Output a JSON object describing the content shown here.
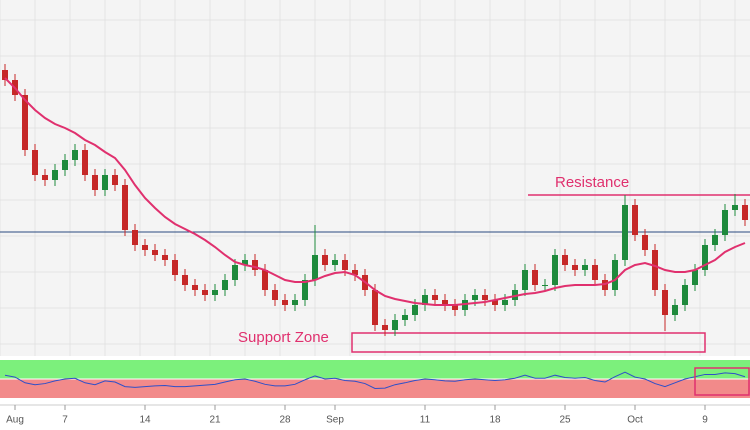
{
  "chart_data": {
    "type": "candlestick",
    "categories": [
      null,
      "Aug",
      null,
      null,
      null,
      null,
      "7",
      null,
      null,
      null,
      null,
      null,
      null,
      null,
      "14",
      null,
      null,
      null,
      null,
      null,
      null,
      "21",
      null,
      null,
      null,
      null,
      null,
      null,
      "28",
      null,
      null,
      null,
      null,
      "Sep",
      null,
      null,
      null,
      null,
      null,
      null,
      null,
      null,
      "11",
      null,
      null,
      null,
      null,
      null,
      null,
      "18",
      null,
      null,
      null,
      null,
      null,
      null,
      "25",
      null,
      null,
      null,
      null,
      null,
      null,
      "Oct",
      null,
      null,
      null,
      null,
      null,
      null,
      "9",
      null,
      null,
      null,
      null
    ],
    "ohlc": [
      [
        285,
        291,
        269,
        275
      ],
      [
        275,
        281,
        254,
        260
      ],
      [
        260,
        266,
        199,
        205
      ],
      [
        205,
        211,
        174,
        180
      ],
      [
        180,
        186,
        169,
        175
      ],
      [
        175,
        191,
        169,
        185
      ],
      [
        185,
        201,
        179,
        195
      ],
      [
        195,
        211,
        189,
        205
      ],
      [
        205,
        211,
        174,
        180
      ],
      [
        180,
        186,
        159,
        165
      ],
      [
        165,
        186,
        159,
        180
      ],
      [
        180,
        186,
        164,
        170
      ],
      [
        170,
        176,
        119,
        125
      ],
      [
        125,
        131,
        104,
        110
      ],
      [
        110,
        116,
        99,
        105
      ],
      [
        105,
        111,
        94,
        100
      ],
      [
        100,
        106,
        89,
        95
      ],
      [
        95,
        101,
        74,
        80
      ],
      [
        80,
        86,
        64,
        70
      ],
      [
        70,
        76,
        59,
        65
      ],
      [
        65,
        71,
        54,
        60
      ],
      [
        60,
        71,
        54,
        65
      ],
      [
        65,
        81,
        59,
        75
      ],
      [
        75,
        96,
        69,
        90
      ],
      [
        90,
        101,
        84,
        95
      ],
      [
        95,
        101,
        79,
        85
      ],
      [
        85,
        91,
        59,
        65
      ],
      [
        65,
        71,
        49,
        55
      ],
      [
        55,
        61,
        44,
        50
      ],
      [
        50,
        61,
        44,
        55
      ],
      [
        55,
        81,
        49,
        75
      ],
      [
        75,
        130,
        69,
        100
      ],
      [
        100,
        106,
        84,
        90
      ],
      [
        90,
        101,
        84,
        95
      ],
      [
        95,
        101,
        79,
        85
      ],
      [
        85,
        91,
        74,
        80
      ],
      [
        80,
        86,
        59,
        65
      ],
      [
        65,
        71,
        24,
        30
      ],
      [
        30,
        36,
        19,
        25
      ],
      [
        25,
        41,
        19,
        35
      ],
      [
        35,
        46,
        29,
        40
      ],
      [
        40,
        56,
        34,
        50
      ],
      [
        50,
        66,
        44,
        60
      ],
      [
        60,
        66,
        49,
        55
      ],
      [
        55,
        61,
        44,
        50
      ],
      [
        50,
        56,
        39,
        45
      ],
      [
        45,
        61,
        39,
        55
      ],
      [
        55,
        66,
        49,
        60
      ],
      [
        60,
        66,
        49,
        55
      ],
      [
        55,
        61,
        44,
        50
      ],
      [
        50,
        61,
        44,
        55
      ],
      [
        55,
        71,
        49,
        65
      ],
      [
        65,
        91,
        59,
        85
      ],
      [
        85,
        91,
        64,
        70
      ],
      [
        70,
        76,
        64,
        70
      ],
      [
        70,
        106,
        64,
        100
      ],
      [
        100,
        106,
        84,
        90
      ],
      [
        90,
        96,
        79,
        85
      ],
      [
        85,
        96,
        79,
        90
      ],
      [
        90,
        96,
        69,
        75
      ],
      [
        75,
        81,
        59,
        65
      ],
      [
        65,
        101,
        59,
        95
      ],
      [
        95,
        160,
        89,
        150
      ],
      [
        150,
        156,
        114,
        120
      ],
      [
        120,
        126,
        99,
        105
      ],
      [
        105,
        111,
        59,
        65
      ],
      [
        65,
        71,
        24,
        40
      ],
      [
        40,
        56,
        34,
        50
      ],
      [
        50,
        76,
        44,
        70
      ],
      [
        70,
        91,
        64,
        85
      ],
      [
        85,
        116,
        79,
        110
      ],
      [
        110,
        126,
        104,
        120
      ],
      [
        120,
        151,
        114,
        145
      ],
      [
        145,
        161,
        139,
        150
      ],
      [
        150,
        156,
        129,
        135
      ]
    ],
    "up_color": "#1e8a3c",
    "down_color": "#c62828",
    "ylim": [
      0,
      355
    ],
    "moving_average": {
      "values": [
        277,
        267,
        255,
        245,
        237,
        231,
        227,
        222,
        215,
        210,
        203,
        197,
        185,
        170,
        157,
        147,
        138,
        131,
        126,
        121,
        115,
        108,
        100,
        93,
        90,
        88,
        85,
        80,
        75,
        73,
        73,
        75,
        79,
        82,
        83,
        80,
        73,
        65,
        59,
        56,
        54,
        52,
        51,
        50,
        50,
        50,
        51,
        52,
        53,
        55,
        57,
        59,
        61,
        62,
        64,
        67,
        69,
        70,
        70,
        70,
        71,
        75,
        85,
        90,
        92,
        89,
        85,
        83,
        83,
        85,
        90,
        95,
        103,
        108,
        112
      ],
      "color": "#e0306e"
    },
    "level_line": {
      "value": 123,
      "color": "#2a4a7f"
    },
    "resistance": {
      "label": "Resistance",
      "value": 160,
      "color": "#e0306e"
    },
    "support_zone": {
      "label": "Support Zone",
      "top": 22,
      "bottom": 3,
      "color": "#e0306e"
    },
    "rsi": {
      "values": [
        60,
        55,
        40,
        35,
        38,
        45,
        50,
        52,
        40,
        35,
        45,
        42,
        30,
        28,
        30,
        32,
        33,
        30,
        30,
        32,
        34,
        36,
        42,
        48,
        50,
        44,
        36,
        32,
        32,
        36,
        48,
        58,
        50,
        52,
        46,
        44,
        38,
        25,
        26,
        35,
        40,
        46,
        50,
        48,
        45,
        44,
        48,
        50,
        48,
        46,
        48,
        52,
        60,
        52,
        52,
        60,
        54,
        52,
        54,
        46,
        42,
        56,
        68,
        55,
        50,
        38,
        30,
        40,
        50,
        56,
        62,
        62,
        66,
        64,
        56
      ],
      "ylim": [
        0,
        100
      ],
      "color": "#2f4fc8",
      "upper_color": "#7cf07c",
      "lower_color": "#f28a8a"
    }
  }
}
